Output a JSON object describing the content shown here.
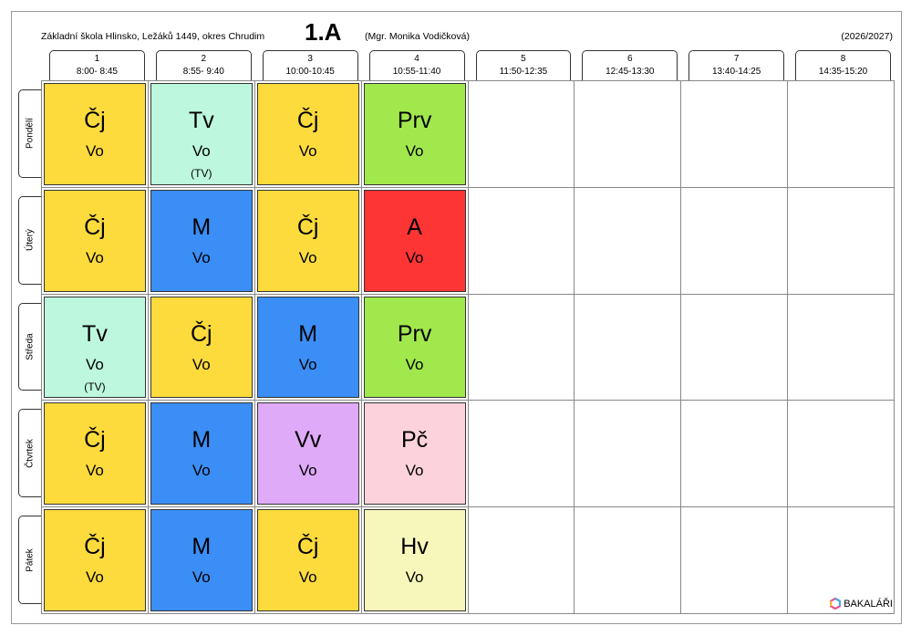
{
  "header": {
    "school": "Základní škola Hlinsko, Ležáků 1449, okres Chrudim",
    "class": "1.A",
    "teacher": "(Mgr. Monika Vodičková)",
    "year": "(2026/2027)"
  },
  "periods": [
    {
      "number": 1,
      "time": "8:00- 8:45"
    },
    {
      "number": 2,
      "time": "8:55- 9:40"
    },
    {
      "number": 3,
      "time": "10:00-10:45"
    },
    {
      "number": 4,
      "time": "10:55-11:40"
    },
    {
      "number": 5,
      "time": "11:50-12:35"
    },
    {
      "number": 6,
      "time": "12:45-13:30"
    },
    {
      "number": 7,
      "time": "13:40-14:25"
    },
    {
      "number": 8,
      "time": "14:35-15:20"
    }
  ],
  "days": [
    {
      "name": "Pondělí",
      "lessons": [
        {
          "subject": "Čj",
          "teacher": "Vo",
          "color": "#fddb3c"
        },
        {
          "subject": "Tv",
          "teacher": "Vo",
          "room": "(TV)",
          "color": "#bdf7de"
        },
        {
          "subject": "Čj",
          "teacher": "Vo",
          "color": "#fddb3c"
        },
        {
          "subject": "Prv",
          "teacher": "Vo",
          "color": "#a1e84d"
        }
      ]
    },
    {
      "name": "Úterý",
      "lessons": [
        {
          "subject": "Čj",
          "teacher": "Vo",
          "color": "#fddb3c"
        },
        {
          "subject": "M",
          "teacher": "Vo",
          "color": "#3b8ef5"
        },
        {
          "subject": "Čj",
          "teacher": "Vo",
          "color": "#fddb3c"
        },
        {
          "subject": "A",
          "teacher": "Vo",
          "color": "#fd3535"
        }
      ]
    },
    {
      "name": "Středa",
      "lessons": [
        {
          "subject": "Tv",
          "teacher": "Vo",
          "room": "(TV)",
          "color": "#bdf7de"
        },
        {
          "subject": "Čj",
          "teacher": "Vo",
          "color": "#fddb3c"
        },
        {
          "subject": "M",
          "teacher": "Vo",
          "color": "#3b8ef5"
        },
        {
          "subject": "Prv",
          "teacher": "Vo",
          "color": "#a1e84d"
        }
      ]
    },
    {
      "name": "Čtvrtek",
      "lessons": [
        {
          "subject": "Čj",
          "teacher": "Vo",
          "color": "#fddb3c"
        },
        {
          "subject": "M",
          "teacher": "Vo",
          "color": "#3b8ef5"
        },
        {
          "subject": "Vv",
          "teacher": "Vo",
          "color": "#dfaaf7"
        },
        {
          "subject": "Pč",
          "teacher": "Vo",
          "color": "#fcd3dc"
        }
      ]
    },
    {
      "name": "Pátek",
      "lessons": [
        {
          "subject": "Čj",
          "teacher": "Vo",
          "color": "#fddb3c"
        },
        {
          "subject": "M",
          "teacher": "Vo",
          "color": "#3b8ef5"
        },
        {
          "subject": "Čj",
          "teacher": "Vo",
          "color": "#fddb3c"
        },
        {
          "subject": "Hv",
          "teacher": "Vo",
          "color": "#f8f7bb"
        }
      ]
    }
  ],
  "footer": {
    "brand": "BAKALÁŘI"
  }
}
